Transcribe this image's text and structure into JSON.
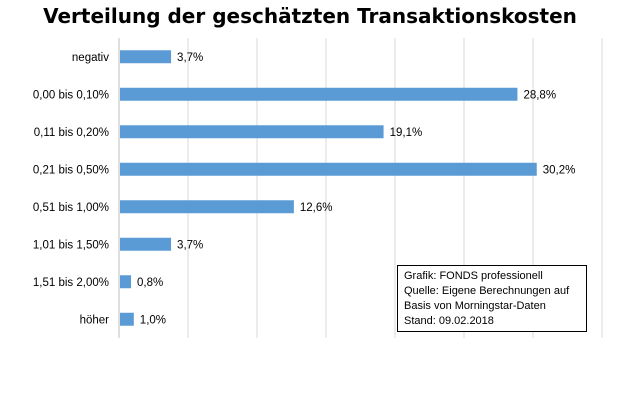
{
  "chart_data": {
    "type": "bar",
    "orientation": "horizontal",
    "title": "Verteilung der geschätzten Transaktionskosten",
    "categories": [
      "negativ",
      "0,00 bis 0,10%",
      "0,11 bis 0,20%",
      "0,21 bis 0,50%",
      "0,51 bis 1,00%",
      "1,01 bis 1,50%",
      "1,51 bis 2,00%",
      "höher"
    ],
    "values": [
      3.7,
      28.8,
      19.1,
      30.2,
      12.6,
      3.7,
      0.8,
      1.0
    ],
    "value_labels": [
      "3,7%",
      "28,8%",
      "19,1%",
      "30,2%",
      "12,6%",
      "3,7%",
      "0,8%",
      "1,0%"
    ],
    "xlim": [
      0,
      35
    ],
    "grid": true,
    "bar_color": "#5b9bd5"
  },
  "source": {
    "line1": "Grafik: FONDS professionell",
    "line2": "Quelle: Eigene Berechnungen auf",
    "line3": "Basis von Morningstar-Daten",
    "line4": "Stand: 09.02.2018"
  }
}
